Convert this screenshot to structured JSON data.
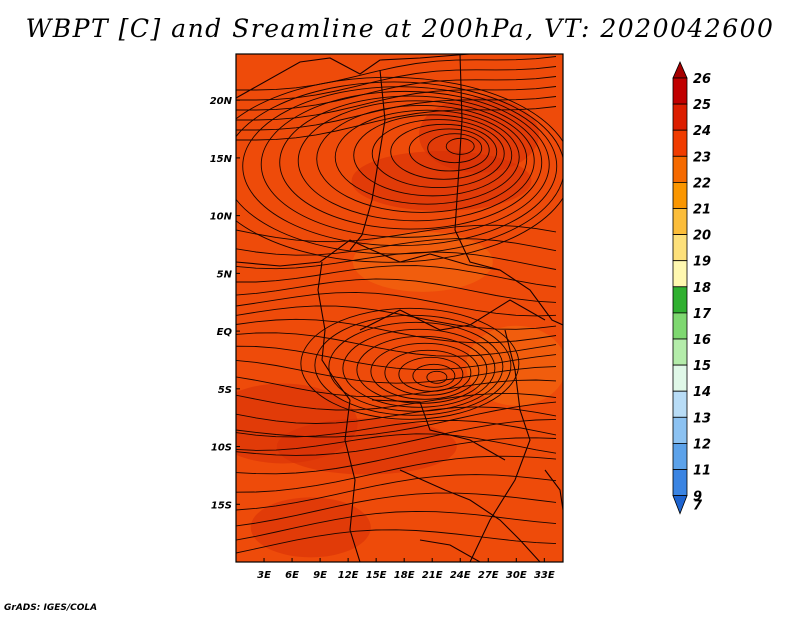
{
  "title": "WBPT [C] and Sreamline at 200hPa, VT: 2020042600",
  "credit": "GrADS: IGES/COLA",
  "map": {
    "variable": "Wet-bulb potential temperature",
    "level": "200hPa",
    "lon_range": [
      0,
      35
    ],
    "lat_range": [
      -20,
      24
    ],
    "lat_ticks": [
      {
        "value": 20,
        "label": "20N"
      },
      {
        "value": 15,
        "label": "15N"
      },
      {
        "value": 10,
        "label": "10N"
      },
      {
        "value": 5,
        "label": "5N"
      },
      {
        "value": 0,
        "label": "EQ"
      },
      {
        "value": -5,
        "label": "5S"
      },
      {
        "value": -10,
        "label": "10S"
      },
      {
        "value": -15,
        "label": "15S"
      }
    ],
    "lon_ticks": [
      {
        "value": 3,
        "label": "3E"
      },
      {
        "value": 6,
        "label": "6E"
      },
      {
        "value": 9,
        "label": "9E"
      },
      {
        "value": 12,
        "label": "12E"
      },
      {
        "value": 15,
        "label": "15E"
      },
      {
        "value": 18,
        "label": "18E"
      },
      {
        "value": 21,
        "label": "21E"
      },
      {
        "value": 24,
        "label": "24E"
      },
      {
        "value": 27,
        "label": "27E"
      },
      {
        "value": 30,
        "label": "30E"
      },
      {
        "value": 33,
        "label": "33E"
      }
    ],
    "field_colors": {
      "base": "#ee4b0a",
      "darker": "#d73008",
      "lighter": "#f46d10"
    },
    "circulation_centers": [
      {
        "name": "anticyclone-north",
        "lon": 24,
        "lat": 16
      },
      {
        "name": "anticyclone-south",
        "lon": 21.5,
        "lat": -4
      }
    ]
  },
  "colorbar": {
    "levels": [
      {
        "label": "26",
        "color": "#a50000"
      },
      {
        "label": "25",
        "color": "#c00000"
      },
      {
        "label": "24",
        "color": "#dc1e00"
      },
      {
        "label": "23",
        "color": "#f03c00"
      },
      {
        "label": "22",
        "color": "#f56a00"
      },
      {
        "label": "21",
        "color": "#fa9600"
      },
      {
        "label": "20",
        "color": "#fbbd3a"
      },
      {
        "label": "19",
        "color": "#fde07a"
      },
      {
        "label": "18",
        "color": "#fff8b0"
      },
      {
        "label": "17",
        "color": "#30b030"
      },
      {
        "label": "16",
        "color": "#7ed870"
      },
      {
        "label": "15",
        "color": "#b4ecaa"
      },
      {
        "label": "14",
        "color": "#e0f8e8"
      },
      {
        "label": "13",
        "color": "#b8dcf6"
      },
      {
        "label": "12",
        "color": "#8cc2f2"
      },
      {
        "label": "11",
        "color": "#5ca2ea"
      },
      {
        "label": "9",
        "color": "#3a84e2"
      },
      {
        "label": "7",
        "color": "#1e64d0"
      }
    ]
  }
}
